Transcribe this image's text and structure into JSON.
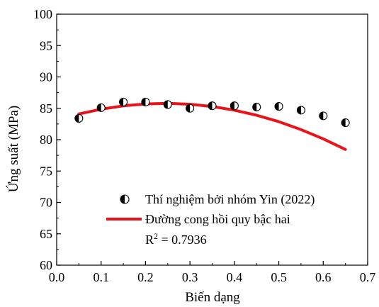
{
  "chart_data": {
    "type": "scatter",
    "xlabel": "Biến dạng",
    "ylabel": "Ứng suất (MPa)",
    "xlim": [
      0.0,
      0.7
    ],
    "ylim": [
      60,
      100
    ],
    "x_ticks": [
      "0.0",
      "0.1",
      "0.2",
      "0.3",
      "0.4",
      "0.5",
      "0.6",
      "0.7"
    ],
    "y_ticks": [
      "60",
      "65",
      "70",
      "75",
      "80",
      "85",
      "90",
      "95",
      "100"
    ],
    "grid": false,
    "legend_position": "bottom-right",
    "series": [
      {
        "name": "Thí nghiệm bởi nhóm Yin (2022)",
        "marker": "half-filled-circle",
        "color": "#000000",
        "x": [
          0.05,
          0.1,
          0.15,
          0.2,
          0.25,
          0.3,
          0.35,
          0.4,
          0.45,
          0.5,
          0.55,
          0.6,
          0.65
        ],
        "y": [
          83.4,
          85.1,
          86.0,
          86.0,
          85.6,
          85.0,
          85.4,
          85.4,
          85.2,
          85.3,
          84.7,
          83.8,
          82.7
        ]
      },
      {
        "name": "Đường cong hồi quy bậc hai",
        "style": "line",
        "color": "#e8141c",
        "x": [
          0.05,
          0.1,
          0.15,
          0.2,
          0.25,
          0.3,
          0.35,
          0.4,
          0.45,
          0.5,
          0.55,
          0.6,
          0.65
        ],
        "y": [
          84.1,
          84.86,
          85.39,
          85.7,
          85.79,
          85.65,
          85.29,
          84.7,
          83.9,
          82.87,
          81.61,
          80.14,
          78.44
        ]
      }
    ],
    "annotations": {
      "r2_base": "R",
      "r2_sup": "2",
      "r2_value": " = 0.7936"
    }
  }
}
